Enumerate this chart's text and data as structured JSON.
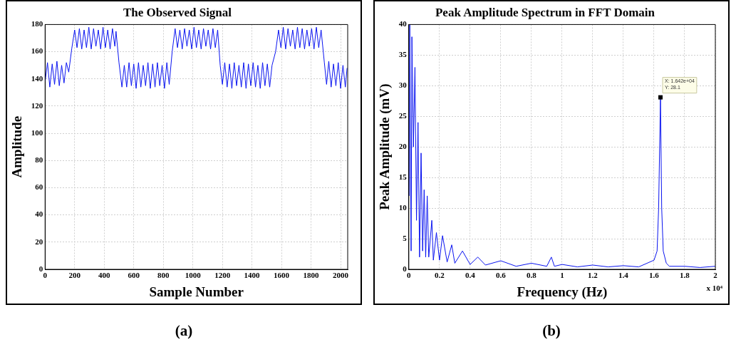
{
  "chart_data": [
    {
      "type": "line",
      "title": "The Observed Signal",
      "xlabel": "Sample Number",
      "ylabel": "Amplitude",
      "color": "#0a14f0",
      "grid": true,
      "xlim": [
        0,
        2048
      ],
      "ylim": [
        0,
        180
      ],
      "xticks": [
        0,
        200,
        400,
        600,
        800,
        1000,
        1200,
        1400,
        1600,
        1800,
        2000
      ],
      "yticks": [
        0,
        20,
        40,
        60,
        80,
        100,
        120,
        140,
        160,
        180
      ],
      "x": [
        0,
        16,
        32,
        48,
        64,
        80,
        96,
        112,
        128,
        144,
        160,
        180,
        200,
        216,
        232,
        248,
        264,
        280,
        296,
        312,
        328,
        344,
        360,
        376,
        392,
        408,
        424,
        440,
        456,
        472,
        480,
        500,
        520,
        536,
        552,
        568,
        584,
        600,
        616,
        632,
        648,
        664,
        680,
        696,
        712,
        728,
        744,
        760,
        776,
        792,
        808,
        824,
        840,
        860,
        880,
        896,
        912,
        928,
        944,
        960,
        976,
        992,
        1008,
        1024,
        1040,
        1056,
        1072,
        1088,
        1104,
        1120,
        1136,
        1152,
        1168,
        1185,
        1200,
        1216,
        1232,
        1248,
        1264,
        1280,
        1296,
        1312,
        1328,
        1344,
        1360,
        1376,
        1392,
        1408,
        1424,
        1440,
        1456,
        1472,
        1488,
        1504,
        1520,
        1536,
        1560,
        1580,
        1596,
        1612,
        1628,
        1644,
        1660,
        1676,
        1692,
        1708,
        1724,
        1740,
        1756,
        1772,
        1788,
        1804,
        1820,
        1836,
        1852,
        1868,
        1890,
        1905,
        1920,
        1936,
        1952,
        1968,
        1984,
        2000,
        2016,
        2032,
        2044
      ],
      "values": [
        138,
        152,
        134,
        151,
        136,
        153,
        135,
        150,
        137,
        152,
        145,
        162,
        176,
        163,
        177,
        162,
        176,
        163,
        178,
        162,
        177,
        164,
        176,
        162,
        178,
        163,
        176,
        162,
        177,
        164,
        175,
        152,
        134,
        150,
        134,
        152,
        135,
        151,
        133,
        152,
        134,
        150,
        135,
        152,
        133,
        151,
        134,
        152,
        135,
        150,
        133,
        152,
        136,
        160,
        177,
        163,
        176,
        162,
        177,
        164,
        176,
        162,
        178,
        163,
        176,
        162,
        177,
        164,
        176,
        162,
        177,
        163,
        176,
        150,
        136,
        152,
        134,
        151,
        133,
        152,
        135,
        150,
        134,
        152,
        133,
        151,
        135,
        152,
        134,
        150,
        133,
        152,
        135,
        151,
        134,
        150,
        160,
        176,
        163,
        178,
        162,
        177,
        164,
        176,
        162,
        178,
        163,
        177,
        162,
        176,
        164,
        177,
        162,
        178,
        163,
        176,
        152,
        136,
        153,
        134,
        151,
        135,
        152,
        133,
        150,
        134,
        148
      ],
      "annotations": [
        "(a)"
      ]
    },
    {
      "type": "line",
      "title": "Peak Amplitude Spectrum in FFT Domain",
      "xlabel": "Frequency (Hz)",
      "ylabel": "Peak Amplitude (mV)",
      "color": "#0a14f0",
      "grid": true,
      "xlim": [
        0,
        2
      ],
      "ylim": [
        0,
        40
      ],
      "xticks": [
        0,
        0.2,
        0.4,
        0.6,
        0.8,
        1,
        1.2,
        1.4,
        1.6,
        1.8,
        2
      ],
      "yticks": [
        0,
        5,
        10,
        15,
        20,
        25,
        30,
        35,
        40
      ],
      "x": [
        0.003,
        0.006,
        0.01,
        0.015,
        0.02,
        0.03,
        0.04,
        0.05,
        0.06,
        0.07,
        0.08,
        0.09,
        0.1,
        0.11,
        0.12,
        0.13,
        0.15,
        0.16,
        0.18,
        0.2,
        0.22,
        0.25,
        0.28,
        0.3,
        0.35,
        0.4,
        0.45,
        0.5,
        0.6,
        0.7,
        0.8,
        0.9,
        0.93,
        0.95,
        1,
        1.1,
        1.2,
        1.3,
        1.4,
        1.5,
        1.6,
        1.62,
        1.63,
        1.642,
        1.65,
        1.66,
        1.68,
        1.7,
        1.8,
        1.9,
        2
      ],
      "values": [
        12,
        40,
        40,
        3,
        38,
        20,
        33,
        8,
        24,
        2,
        19,
        3,
        13,
        2,
        12,
        2,
        8,
        1.5,
        6,
        1.5,
        5.5,
        1.2,
        4,
        1,
        3,
        0.8,
        2,
        0.7,
        1.4,
        0.5,
        1,
        0.5,
        2,
        0.5,
        0.8,
        0.4,
        0.7,
        0.4,
        0.6,
        0.4,
        1.5,
        3,
        10,
        28.1,
        10,
        3,
        1,
        0.5,
        0.5,
        0.3,
        0.5
      ],
      "annotations": [
        "x 10⁴",
        {
          "text": "X: 1.642e+04\nY: 28.1",
          "x": 1.642,
          "y": 28.1
        },
        "(b)"
      ]
    }
  ]
}
